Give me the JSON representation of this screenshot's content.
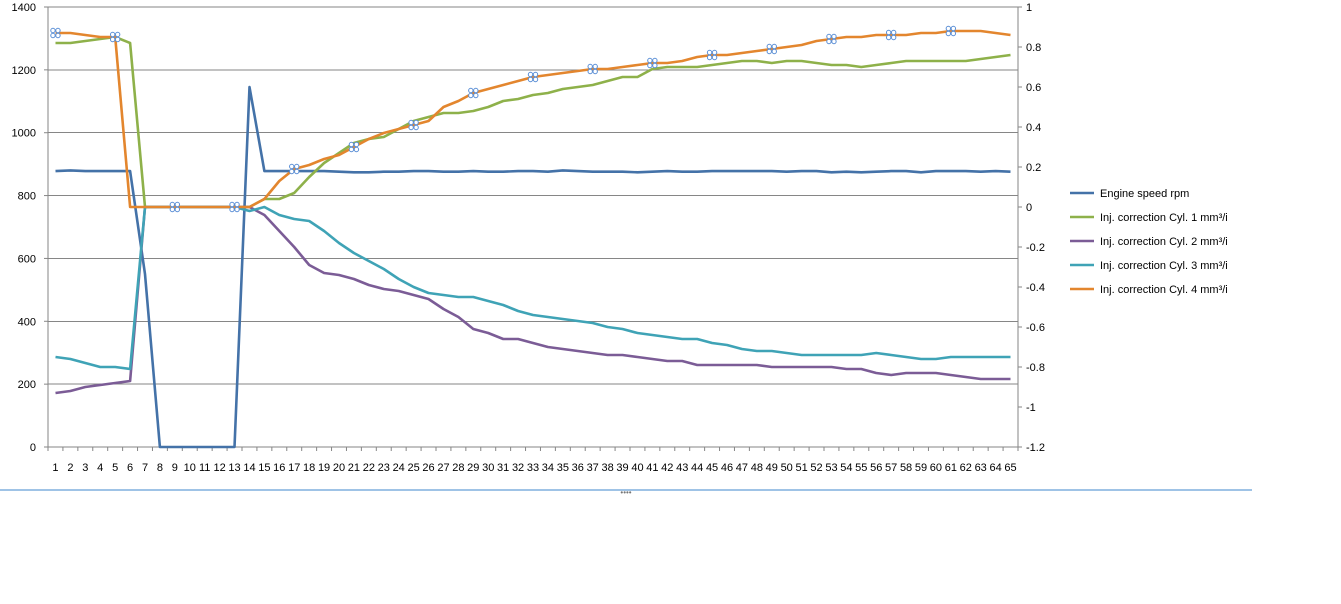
{
  "chart_data": {
    "type": "line",
    "x": [
      1,
      2,
      3,
      4,
      5,
      6,
      7,
      8,
      9,
      10,
      11,
      12,
      13,
      14,
      15,
      16,
      17,
      18,
      19,
      20,
      21,
      22,
      23,
      24,
      25,
      26,
      27,
      28,
      29,
      30,
      31,
      32,
      33,
      34,
      35,
      36,
      37,
      38,
      39,
      40,
      41,
      42,
      43,
      44,
      45,
      46,
      47,
      48,
      49,
      50,
      51,
      52,
      53,
      54,
      55,
      56,
      57,
      58,
      59,
      60,
      61,
      62,
      63,
      64,
      65
    ],
    "y_left_lim": [
      0,
      1400
    ],
    "y_left_ticks": [
      0,
      200,
      400,
      600,
      800,
      1000,
      1200,
      1400
    ],
    "y_right_lim": [
      -1.2,
      1
    ],
    "y_right_ticks": [
      "-1.2",
      "-1",
      "-0.8",
      "-0.6",
      "-0.4",
      "-0.2",
      "0",
      "0.2",
      "0.4",
      "0.6",
      "0.8",
      "1"
    ],
    "grid": "horizontal",
    "legend_position": "right",
    "series": [
      {
        "name": "Engine speed rpm",
        "axis": "left",
        "color": "#4472A8",
        "values": [
          878,
          880,
          878,
          878,
          878,
          878,
          550,
          0,
          0,
          0,
          0,
          0,
          0,
          1145,
          878,
          878,
          878,
          878,
          878,
          876,
          874,
          874,
          876,
          876,
          878,
          878,
          876,
          876,
          878,
          876,
          876,
          878,
          878,
          876,
          880,
          878,
          876,
          876,
          876,
          874,
          876,
          878,
          876,
          876,
          878,
          878,
          878,
          878,
          878,
          876,
          878,
          878,
          874,
          876,
          874,
          876,
          878,
          878,
          874,
          878,
          878,
          878,
          876,
          878,
          876
        ]
      },
      {
        "name": "Inj. correction Cyl. 1 mm³/i",
        "axis": "right",
        "color": "#8EB14A",
        "values": [
          0.82,
          0.82,
          0.83,
          0.84,
          0.85,
          0.82,
          0,
          0,
          0,
          0,
          0,
          0,
          0,
          0,
          0.04,
          0.04,
          0.07,
          0.15,
          0.22,
          0.27,
          0.32,
          0.34,
          0.35,
          0.39,
          0.43,
          0.45,
          0.47,
          0.47,
          0.48,
          0.5,
          0.53,
          0.54,
          0.56,
          0.57,
          0.59,
          0.6,
          0.61,
          0.63,
          0.65,
          0.65,
          0.69,
          0.7,
          0.7,
          0.7,
          0.71,
          0.72,
          0.73,
          0.73,
          0.72,
          0.73,
          0.73,
          0.72,
          0.71,
          0.71,
          0.7,
          0.71,
          0.72,
          0.73,
          0.73,
          0.73,
          0.73,
          0.73,
          0.74,
          0.75,
          0.76
        ]
      },
      {
        "name": "Inj. correction Cyl. 2 mm³/i",
        "axis": "right",
        "color": "#7B5C96",
        "values": [
          -0.93,
          -0.92,
          -0.9,
          -0.89,
          -0.88,
          -0.87,
          0,
          0,
          0,
          0,
          0,
          0,
          0,
          0,
          -0.04,
          -0.12,
          -0.2,
          -0.29,
          -0.33,
          -0.34,
          -0.36,
          -0.39,
          -0.41,
          -0.42,
          -0.44,
          -0.46,
          -0.51,
          -0.55,
          -0.61,
          -0.63,
          -0.66,
          -0.66,
          -0.68,
          -0.7,
          -0.71,
          -0.72,
          -0.73,
          -0.74,
          -0.74,
          -0.75,
          -0.76,
          -0.77,
          -0.77,
          -0.79,
          -0.79,
          -0.79,
          -0.79,
          -0.79,
          -0.8,
          -0.8,
          -0.8,
          -0.8,
          -0.8,
          -0.81,
          -0.81,
          -0.83,
          -0.84,
          -0.83,
          -0.83,
          -0.83,
          -0.84,
          -0.85,
          -0.86,
          -0.86,
          -0.86
        ]
      },
      {
        "name": "Inj. correction Cyl. 3 mm³/i",
        "axis": "right",
        "color": "#3FA3B6",
        "values": [
          -0.75,
          -0.76,
          -0.78,
          -0.8,
          -0.8,
          -0.81,
          0,
          0,
          0,
          0,
          0,
          0,
          0,
          -0.02,
          0,
          -0.04,
          -0.06,
          -0.07,
          -0.12,
          -0.18,
          -0.23,
          -0.27,
          -0.31,
          -0.36,
          -0.4,
          -0.43,
          -0.44,
          -0.45,
          -0.45,
          -0.47,
          -0.49,
          -0.52,
          -0.54,
          -0.55,
          -0.56,
          -0.57,
          -0.58,
          -0.6,
          -0.61,
          -0.63,
          -0.64,
          -0.65,
          -0.66,
          -0.66,
          -0.68,
          -0.69,
          -0.71,
          -0.72,
          -0.72,
          -0.73,
          -0.74,
          -0.74,
          -0.74,
          -0.74,
          -0.74,
          -0.73,
          -0.74,
          -0.75,
          -0.76,
          -0.76,
          -0.75,
          -0.75,
          -0.75,
          -0.75,
          -0.75
        ]
      },
      {
        "name": "Inj. correction Cyl. 4 mm³/i",
        "axis": "right",
        "color": "#E3862E",
        "values": [
          0.87,
          0.87,
          0.86,
          0.85,
          0.85,
          0,
          0,
          0,
          0,
          0,
          0,
          0,
          0,
          0,
          0.04,
          0.13,
          0.19,
          0.21,
          0.24,
          0.26,
          0.3,
          0.34,
          0.37,
          0.39,
          0.41,
          0.43,
          0.5,
          0.53,
          0.57,
          0.59,
          0.61,
          0.63,
          0.65,
          0.66,
          0.67,
          0.68,
          0.69,
          0.69,
          0.7,
          0.71,
          0.72,
          0.72,
          0.73,
          0.75,
          0.76,
          0.76,
          0.77,
          0.78,
          0.79,
          0.8,
          0.81,
          0.83,
          0.84,
          0.85,
          0.85,
          0.86,
          0.86,
          0.86,
          0.87,
          0.87,
          0.88,
          0.88,
          0.88,
          0.87,
          0.86
        ]
      }
    ],
    "selection_markers": [
      {
        "series": 4,
        "points": [
          1,
          5,
          9,
          13,
          17,
          21,
          25,
          29,
          33,
          37,
          41,
          45,
          49,
          53,
          57,
          61
        ]
      }
    ],
    "colors": {
      "grid": "#868686",
      "axis": "#868686",
      "splitter": "#9fc3e6",
      "marker": "#5b8fd6"
    }
  }
}
